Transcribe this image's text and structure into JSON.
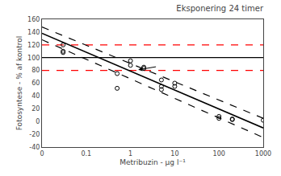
{
  "chart_data": {
    "type": "scatter",
    "title": "Eksponering 24 timer",
    "x_label": "Metribuzin - µg l⁻¹",
    "y_label": "Fotosyntese - % af kontrol",
    "log": "x",
    "grid": false,
    "xlim": [
      0.01,
      1000
    ],
    "xticks": [
      {
        "value": 0.01,
        "label": "0"
      },
      0.1,
      1,
      10,
      100,
      1000
    ],
    "ylim": [
      -40,
      160
    ],
    "yticks": [
      -40,
      -20,
      0,
      20,
      40,
      60,
      80,
      100,
      120,
      140,
      160
    ],
    "series": [
      {
        "type": "scatter",
        "marker": "circle-open",
        "color": "#000000",
        "x": [
          0.03,
          0.03,
          0.03,
          0.5,
          0.5,
          1.0,
          1.0,
          2.0,
          2.0,
          5.0,
          5.0,
          5.0,
          10.0,
          10.0,
          100.0,
          100.0,
          200.0,
          200.0,
          1000.0
        ],
        "values": [
          120,
          110,
          108,
          75,
          52,
          95,
          88,
          85,
          83,
          65,
          55,
          50,
          60,
          55,
          8,
          5,
          4,
          3,
          2
        ]
      },
      {
        "type": "line",
        "line_style": "solid",
        "color": "#000000",
        "x": [
          0.01,
          1000
        ],
        "values": [
          138,
          -10
        ]
      },
      {
        "type": "line",
        "line_style": "dashed",
        "color": "#000000",
        "x": [
          0.01,
          1000
        ],
        "values": [
          148,
          5
        ]
      },
      {
        "type": "line",
        "line_style": "dashed",
        "color": "#000000",
        "x": [
          0.01,
          1000
        ],
        "values": [
          128,
          -25
        ]
      }
    ],
    "hlines": [
      {
        "y": 100,
        "color": "#000000",
        "line_style": "solid"
      },
      {
        "y": 120,
        "color": "#ff0000",
        "line_style": "dashed"
      },
      {
        "y": 80,
        "color": "#ff0000",
        "line_style": "dashed"
      }
    ],
    "arrows": [
      {
        "x": 1.5,
        "y": 81,
        "from_x": 4.0,
        "from_y": 86
      }
    ],
    "background_color": "#ffffff"
  }
}
